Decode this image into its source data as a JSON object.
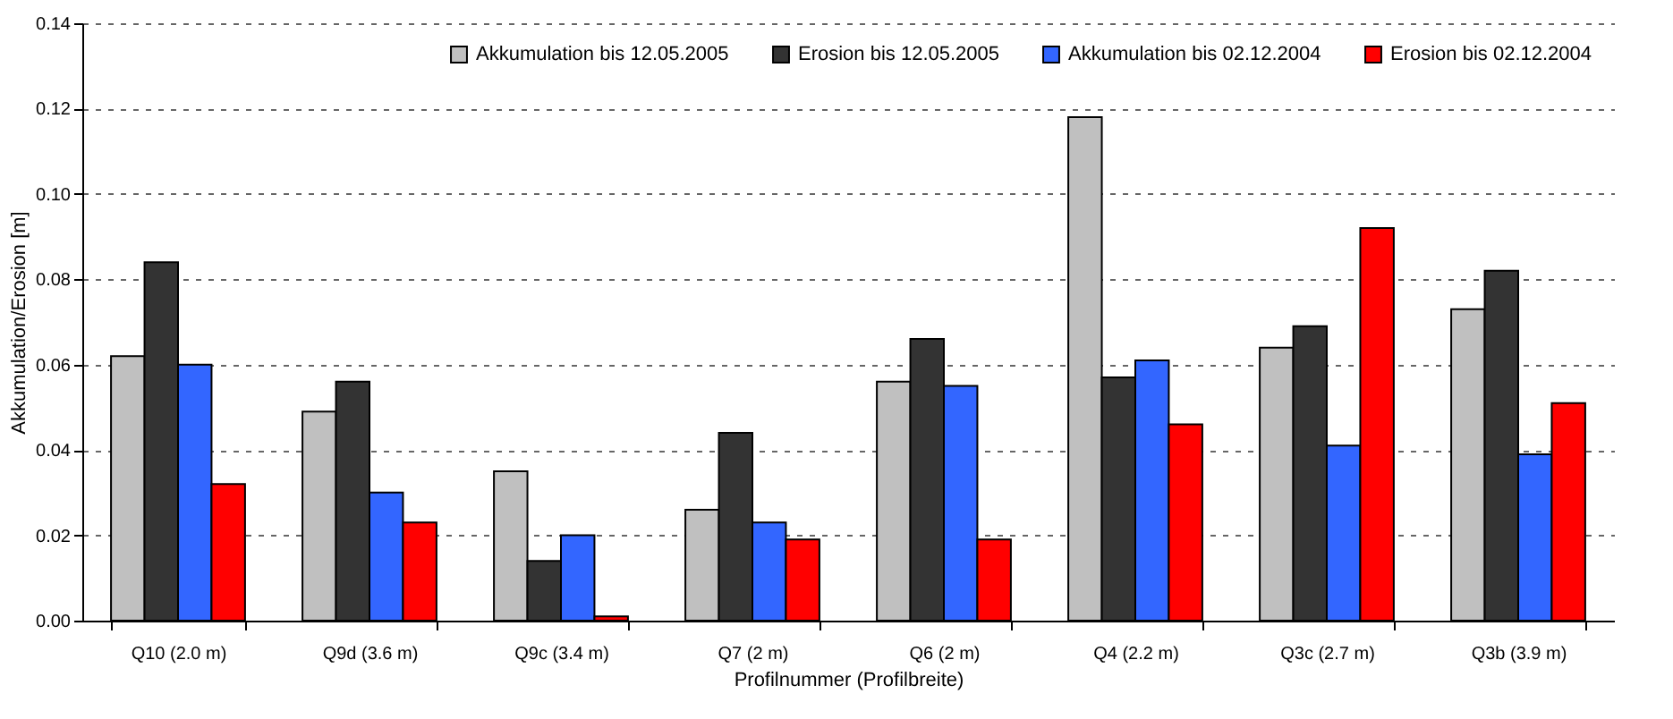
{
  "chart_data": {
    "type": "bar",
    "xlabel": "Profilnummer (Profilbreite)",
    "ylabel": "Akkumulation/Erosion [m]",
    "categories": [
      "Q10 (2.0 m)",
      "Q9d (3.6 m)",
      "Q9c (3.4 m)",
      "Q7 (2 m)",
      "Q6 (2 m)",
      "Q4 (2.2 m)",
      "Q3c (2.7 m)",
      "Q3b (3.9 m)"
    ],
    "series": [
      {
        "name": "Akkumulation bis 12.05.2005",
        "color": "#c0c0c0",
        "values": [
          0.062,
          0.049,
          0.035,
          0.026,
          0.056,
          0.118,
          0.064,
          0.073
        ]
      },
      {
        "name": "Erosion bis 12.05.2005",
        "color": "#333333",
        "values": [
          0.084,
          0.056,
          0.014,
          0.044,
          0.066,
          0.057,
          0.069,
          0.082
        ]
      },
      {
        "name": "Akkumulation bis 02.12.2004",
        "color": "#3366ff",
        "values": [
          0.06,
          0.03,
          0.02,
          0.023,
          0.055,
          0.061,
          0.041,
          0.039
        ]
      },
      {
        "name": "Erosion bis 02.12.2004",
        "color": "#ff0000",
        "values": [
          0.032,
          0.023,
          0.001,
          0.019,
          0.019,
          0.046,
          0.092,
          0.051
        ]
      }
    ],
    "ylim": [
      0,
      0.14
    ],
    "yticks": [
      {
        "value": 0,
        "label": "0.00"
      },
      {
        "value": 0.02,
        "label": "0.02"
      },
      {
        "value": 0.04,
        "label": "0.04"
      },
      {
        "value": 0.06,
        "label": "0.06"
      },
      {
        "value": 0.08,
        "label": "0.08"
      },
      {
        "value": 0.1,
        "label": "0.10"
      },
      {
        "value": 0.12,
        "label": "0.12"
      },
      {
        "value": 0.14,
        "label": "0.14"
      }
    ],
    "grid": "y",
    "legend": "top right"
  }
}
